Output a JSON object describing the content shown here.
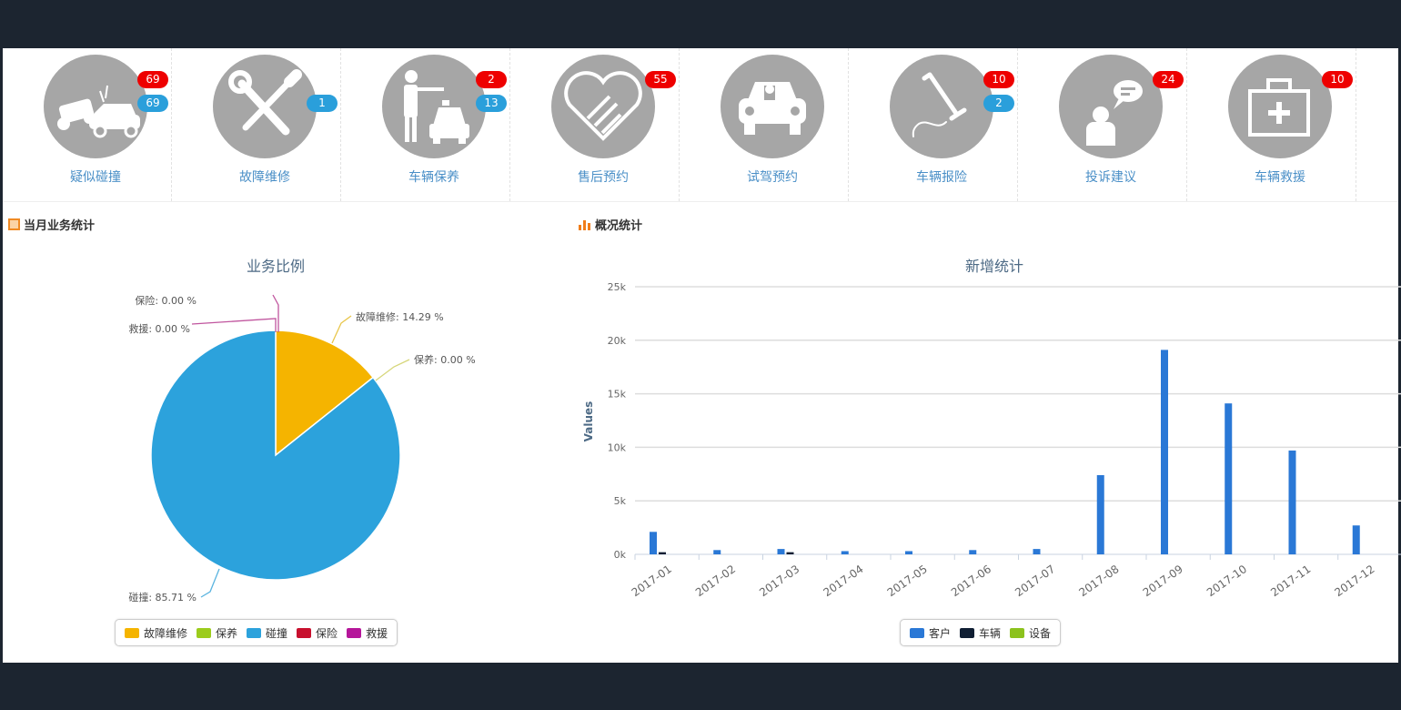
{
  "tiles": [
    {
      "label": "疑似碰撞",
      "icon": "car-crash-icon",
      "red": "69",
      "blue": "69"
    },
    {
      "label": "故障维修",
      "icon": "wrench-screwdriver-icon",
      "red": null,
      "blue": "1"
    },
    {
      "label": "车辆保养",
      "icon": "taxi-person-icon",
      "red": "2",
      "blue": "13"
    },
    {
      "label": "售后预约",
      "icon": "handshake-heart-icon",
      "red": "55",
      "blue": null
    },
    {
      "label": "试驾预约",
      "icon": "car-driver-icon",
      "red": null,
      "blue": null
    },
    {
      "label": "车辆报险",
      "icon": "phone-handset-icon",
      "red": "10",
      "blue": "2"
    },
    {
      "label": "投诉建议",
      "icon": "person-speech-icon",
      "red": "24",
      "blue": null
    },
    {
      "label": "车辆救援",
      "icon": "first-aid-kit-icon",
      "red": "10",
      "blue": null
    }
  ],
  "left_section": {
    "title": "当月业务统计"
  },
  "right_section": {
    "title": "概况统计"
  },
  "colors": {
    "red_badge": "#ee0000",
    "blue_badge": "#2a9fdb",
    "tile_label": "#4a8fc7"
  },
  "chart_data": [
    {
      "type": "pie",
      "title": "业务比例",
      "slices": [
        {
          "name": "故障维修",
          "value": 14.29,
          "label": "故障维修: 14.29 %",
          "color": "#f5b400"
        },
        {
          "name": "保养",
          "value": 0,
          "label": "保养: 0.00 %",
          "color": "#9ccc1c"
        },
        {
          "name": "碰撞",
          "value": 85.71,
          "label": "碰撞: 85.71 %",
          "color": "#2ca2dc"
        },
        {
          "name": "保险",
          "value": 0,
          "label": "保险: 0.00 %",
          "color": "#c8102e"
        },
        {
          "name": "救援",
          "value": 0,
          "label": "救援: 0.00 %",
          "color": "#b5169a"
        }
      ],
      "legend": "bottom"
    },
    {
      "type": "bar",
      "title": "新增统计",
      "ylabel": "Values",
      "ylim": [
        0,
        25000
      ],
      "yticks": [
        "0k",
        "5k",
        "10k",
        "15k",
        "20k",
        "25k"
      ],
      "categories": [
        "2017-01",
        "2017-02",
        "2017-03",
        "2017-04",
        "2017-05",
        "2017-06",
        "2017-07",
        "2017-08",
        "2017-09",
        "2017-10",
        "2017-11",
        "2017-12"
      ],
      "series": [
        {
          "name": "客户",
          "color": "#2a78d6",
          "values": [
            2100,
            400,
            500,
            300,
            300,
            400,
            500,
            7400,
            19100,
            14100,
            9700,
            2700
          ]
        },
        {
          "name": "车辆",
          "color": "#0f1e33",
          "values": [
            200,
            0,
            200,
            0,
            0,
            0,
            0,
            0,
            0,
            0,
            0,
            0
          ]
        },
        {
          "name": "设备",
          "color": "#8cc21d",
          "values": [
            0,
            0,
            0,
            0,
            0,
            0,
            0,
            0,
            0,
            0,
            0,
            0
          ]
        }
      ],
      "grid": true,
      "legend": "bottom"
    }
  ]
}
